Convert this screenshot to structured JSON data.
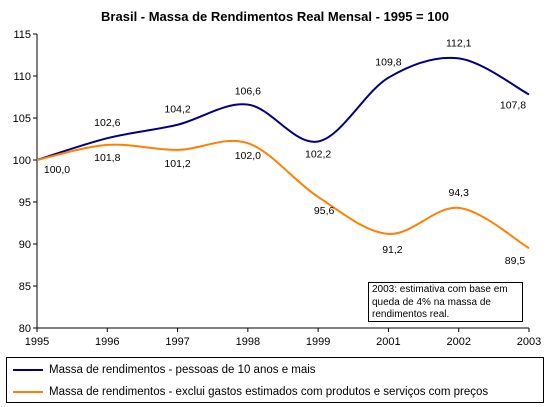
{
  "chart_data": {
    "type": "line",
    "title": "Brasil - Massa de Rendimentos Real Mensal - 1995 = 100",
    "xlabel": "",
    "ylabel": "",
    "categories": [
      "1995",
      "1996",
      "1997",
      "1998",
      "1999",
      "2001",
      "2002",
      "2003"
    ],
    "ylim": [
      80,
      115
    ],
    "yticks": [
      "80",
      "85",
      "90",
      "95",
      "100",
      "105",
      "110",
      "115"
    ],
    "grid": false,
    "legend_position": "bottom",
    "series": [
      {
        "name": "Massa de rendimentos - pessoas de 10 anos e mais",
        "color": "#000080",
        "values": [
          100.0,
          102.6,
          104.2,
          106.6,
          102.2,
          109.8,
          112.1,
          107.8
        ],
        "labels": [
          "",
          "102,6",
          "104,2",
          "106,6",
          "102,2",
          "109,8",
          "112,1",
          "107,8"
        ]
      },
      {
        "name": "Massa de rendimentos - exclui gastos estimados com produtos e serviços com preços",
        "color": "#FF8000",
        "values": [
          100.0,
          101.8,
          101.2,
          102.0,
          95.6,
          91.2,
          94.3,
          89.5
        ],
        "labels": [
          "100,0",
          "101,8",
          "101,2",
          "102,0",
          "95,6",
          "91,2",
          "94,3",
          "89,5"
        ]
      }
    ],
    "annotation": "2003: estimativa com base em queda de 4% na massa de rendimentos real."
  }
}
